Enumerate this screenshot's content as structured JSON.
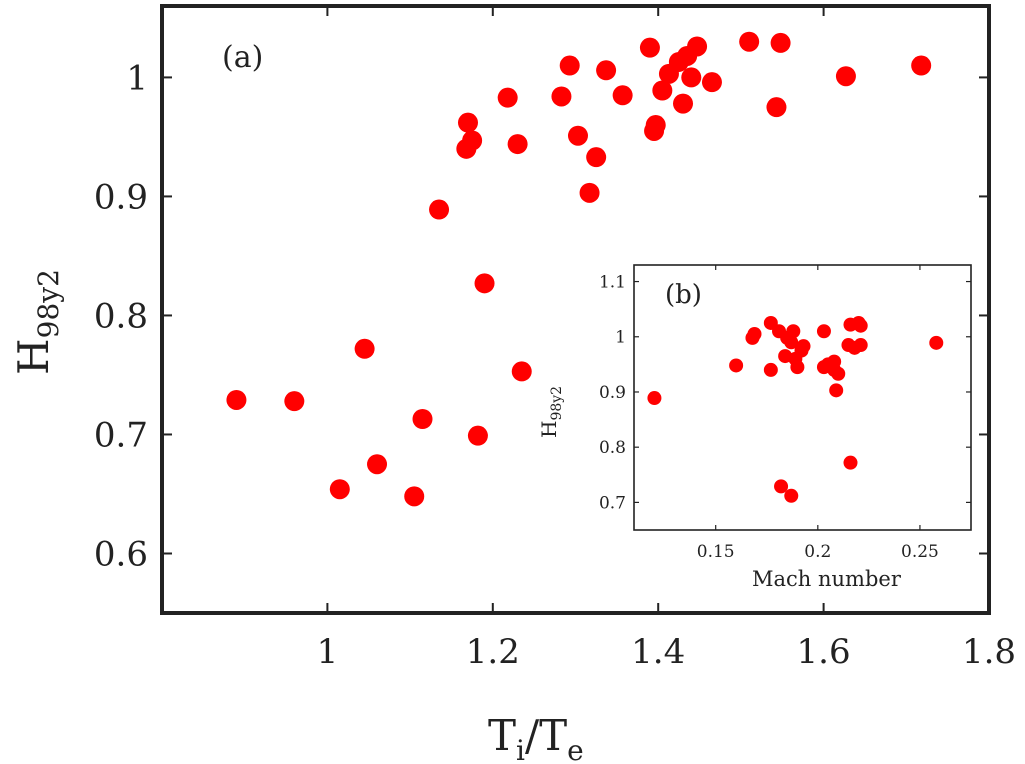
{
  "chart_data": [
    {
      "type": "scatter",
      "panel_label": "(a)",
      "xlabel": {
        "main": "T",
        "sub1": "i",
        "mid": "/T",
        "sub2": "e"
      },
      "ylabel": {
        "main": "H",
        "sub": "98y2"
      },
      "xlim": [
        0.8,
        1.8
      ],
      "ylim": [
        0.55,
        1.06
      ],
      "xticks": [
        1,
        1.2,
        1.4,
        1.6,
        1.8
      ],
      "xtick_labels": [
        "1",
        "1.2",
        "1.4",
        "1.6",
        "1.8"
      ],
      "yticks": [
        0.6,
        0.7,
        0.8,
        0.9,
        1
      ],
      "ytick_labels": [
        "0.6",
        "0.7",
        "0.8",
        "0.9",
        "1"
      ],
      "marker_color": "#ff0000",
      "points": [
        [
          0.89,
          0.729
        ],
        [
          0.96,
          0.728
        ],
        [
          1.015,
          0.654
        ],
        [
          1.045,
          0.772
        ],
        [
          1.06,
          0.675
        ],
        [
          1.105,
          0.648
        ],
        [
          1.115,
          0.713
        ],
        [
          1.135,
          0.889
        ],
        [
          1.168,
          0.94
        ],
        [
          1.17,
          0.962
        ],
        [
          1.175,
          0.947
        ],
        [
          1.182,
          0.699
        ],
        [
          1.19,
          0.827
        ],
        [
          1.218,
          0.983
        ],
        [
          1.23,
          0.944
        ],
        [
          1.235,
          0.753
        ],
        [
          1.283,
          0.984
        ],
        [
          1.293,
          1.01
        ],
        [
          1.303,
          0.951
        ],
        [
          1.317,
          0.903
        ],
        [
          1.325,
          0.933
        ],
        [
          1.337,
          1.006
        ],
        [
          1.357,
          0.985
        ],
        [
          1.39,
          1.025
        ],
        [
          1.395,
          0.955
        ],
        [
          1.397,
          0.96
        ],
        [
          1.405,
          0.989
        ],
        [
          1.413,
          1.003
        ],
        [
          1.425,
          1.013
        ],
        [
          1.43,
          0.978
        ],
        [
          1.435,
          1.018
        ],
        [
          1.44,
          1.0
        ],
        [
          1.447,
          1.026
        ],
        [
          1.465,
          0.996
        ],
        [
          1.51,
          1.03
        ],
        [
          1.543,
          0.975
        ],
        [
          1.548,
          1.029
        ],
        [
          1.627,
          1.001
        ],
        [
          1.718,
          1.01
        ]
      ]
    },
    {
      "type": "scatter",
      "panel_label": "(b)",
      "xlabel": "Mach number",
      "ylabel": {
        "main": "H",
        "sub": "98y2"
      },
      "xlim": [
        0.11,
        0.275
      ],
      "ylim": [
        0.65,
        1.13
      ],
      "xticks": [
        0.15,
        0.2,
        0.25
      ],
      "xtick_labels": [
        "0.15",
        "0.2",
        "0.25"
      ],
      "yticks": [
        0.7,
        0.8,
        0.9,
        1,
        1.1
      ],
      "ytick_labels": [
        "0.7",
        "0.8",
        "0.9",
        "1",
        "1.1"
      ],
      "marker_color": "#ff0000",
      "points": [
        [
          0.12,
          0.889
        ],
        [
          0.16,
          0.948
        ],
        [
          0.168,
          0.998
        ],
        [
          0.169,
          1.005
        ],
        [
          0.177,
          1.025
        ],
        [
          0.177,
          0.94
        ],
        [
          0.181,
          1.01
        ],
        [
          0.182,
          0.729
        ],
        [
          0.184,
          0.965
        ],
        [
          0.185,
          0.998
        ],
        [
          0.187,
          0.712
        ],
        [
          0.187,
          0.99
        ],
        [
          0.188,
          1.01
        ],
        [
          0.189,
          0.96
        ],
        [
          0.19,
          0.945
        ],
        [
          0.192,
          0.975
        ],
        [
          0.193,
          0.983
        ],
        [
          0.203,
          1.01
        ],
        [
          0.203,
          0.945
        ],
        [
          0.205,
          0.95
        ],
        [
          0.208,
          0.94
        ],
        [
          0.208,
          0.955
        ],
        [
          0.209,
          0.903
        ],
        [
          0.21,
          0.933
        ],
        [
          0.215,
          0.985
        ],
        [
          0.216,
          1.022
        ],
        [
          0.216,
          0.772
        ],
        [
          0.218,
          0.98
        ],
        [
          0.22,
          1.025
        ],
        [
          0.221,
          1.02
        ],
        [
          0.221,
          0.985
        ],
        [
          0.258,
          0.989
        ]
      ]
    }
  ]
}
